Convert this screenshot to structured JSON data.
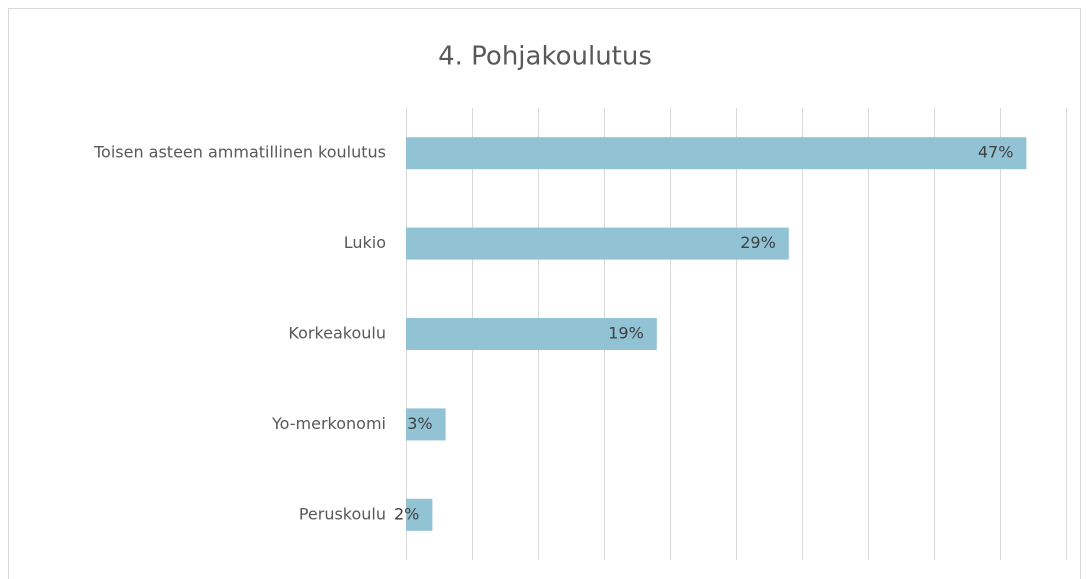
{
  "chart_data": {
    "type": "bar",
    "orientation": "horizontal",
    "title": "4. Pohjakoulutus",
    "categories": [
      "Toisen asteen ammatillinen koulutus",
      "Lukio",
      "Korkeakoulu",
      "Yo-merkonomi",
      "Peruskoulu"
    ],
    "values": [
      47,
      29,
      19,
      3,
      2
    ],
    "value_labels": [
      "47%",
      "29%",
      "19%",
      "3%",
      "2%"
    ],
    "color": "#92c3d5",
    "xlim": [
      0,
      50
    ],
    "xticks": [
      0,
      5,
      10,
      15,
      20,
      25,
      30,
      35,
      40,
      45,
      50
    ],
    "grid": true
  }
}
